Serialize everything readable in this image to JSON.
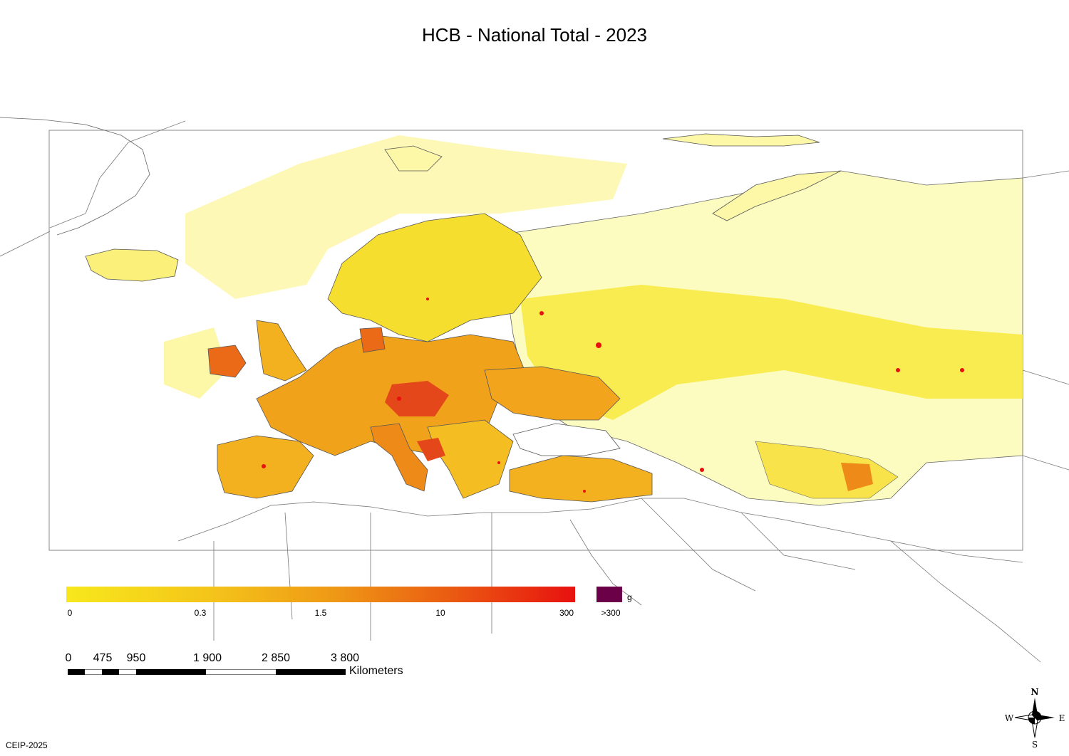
{
  "title": "HCB - National Total - 2023",
  "legend": {
    "ticks": [
      "0",
      "0.3",
      "1.5",
      "10",
      "300"
    ],
    "overflow_label": ">300",
    "unit": "g",
    "colors": {
      "low": "#f7e81c",
      "mid": "#ef9a16",
      "high": "#e8110f",
      "overflow": "#6b0049",
      "background_low": "#fdfcc0"
    }
  },
  "scale_bar": {
    "labels": [
      "0",
      "475",
      "950",
      "1 900",
      "2 850",
      "3 800"
    ],
    "unit": "Kilometers"
  },
  "compass": {
    "n": "N",
    "s": "S",
    "e": "E",
    "w": "W"
  },
  "credit": "CEIP-2025"
}
